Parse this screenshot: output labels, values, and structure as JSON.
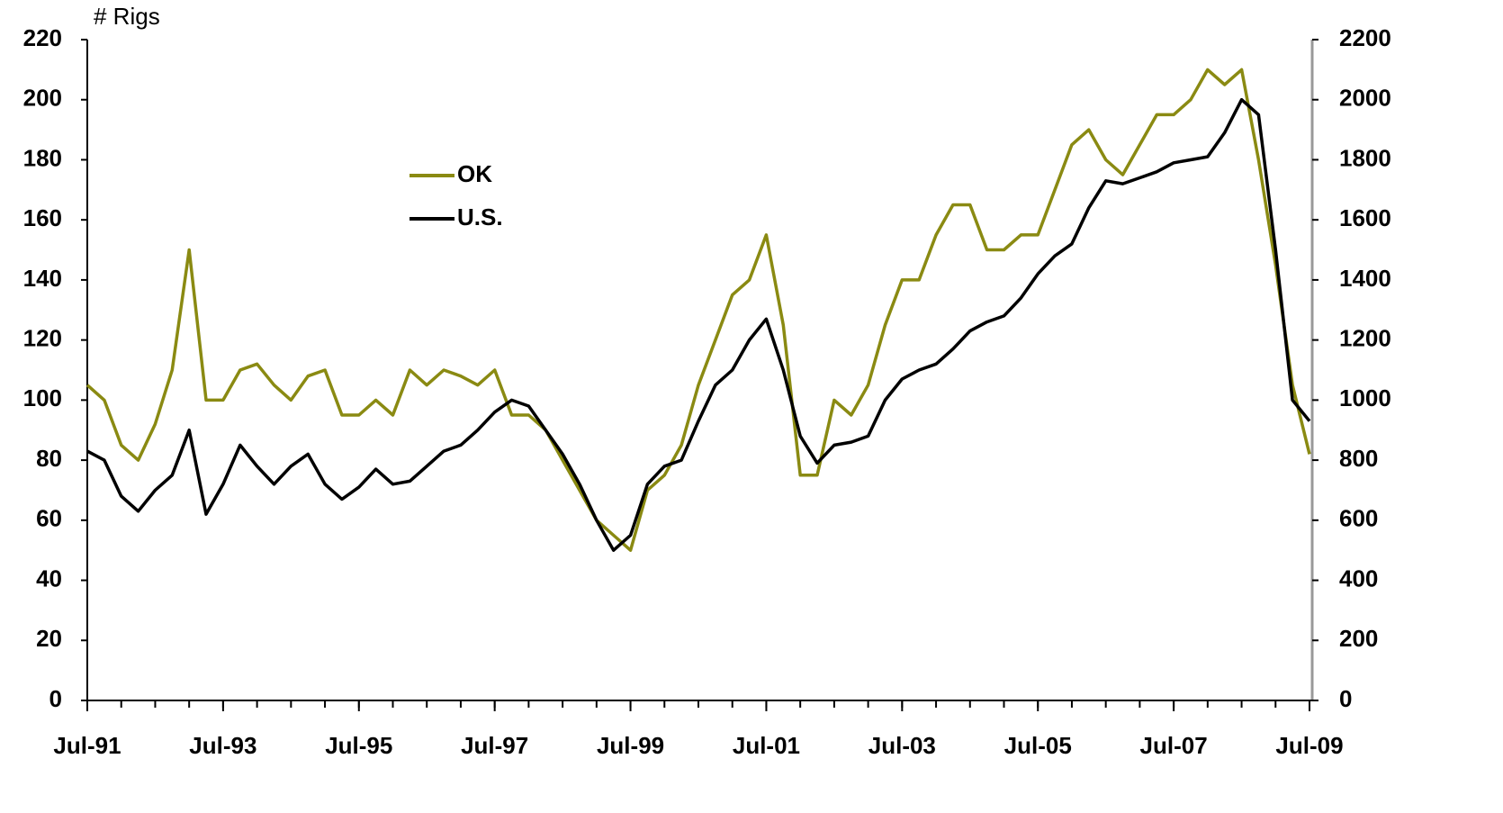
{
  "chart_data": {
    "type": "line",
    "y_label": "# Rigs",
    "x": [
      "Jul-91",
      "Oct-91",
      "Jan-92",
      "Apr-92",
      "Jul-92",
      "Oct-92",
      "Jan-93",
      "Apr-93",
      "Jul-93",
      "Oct-93",
      "Jan-94",
      "Apr-94",
      "Jul-94",
      "Oct-94",
      "Jan-95",
      "Apr-95",
      "Jul-95",
      "Oct-95",
      "Jan-96",
      "Apr-96",
      "Jul-96",
      "Oct-96",
      "Jan-97",
      "Apr-97",
      "Jul-97",
      "Oct-97",
      "Jan-98",
      "Apr-98",
      "Jul-98",
      "Oct-98",
      "Jan-99",
      "Apr-99",
      "Jul-99",
      "Oct-99",
      "Jan-00",
      "Apr-00",
      "Jul-00",
      "Oct-00",
      "Jan-01",
      "Apr-01",
      "Jul-01",
      "Oct-01",
      "Jan-02",
      "Apr-02",
      "Jul-02",
      "Oct-02",
      "Jan-03",
      "Apr-03",
      "Jul-03",
      "Oct-03",
      "Jan-04",
      "Apr-04",
      "Jul-04",
      "Oct-04",
      "Jan-05",
      "Apr-05",
      "Jul-05",
      "Oct-05",
      "Jan-06",
      "Apr-06",
      "Jul-06",
      "Oct-06",
      "Jan-07",
      "Apr-07",
      "Jul-07",
      "Oct-07",
      "Jan-08",
      "Apr-08",
      "Jul-08",
      "Oct-08",
      "Jan-09",
      "Apr-09",
      "Jul-09"
    ],
    "xticks": [
      "Jul-91",
      "Jul-93",
      "Jul-95",
      "Jul-97",
      "Jul-99",
      "Jul-01",
      "Jul-03",
      "Jul-05",
      "Jul-07",
      "Jul-09"
    ],
    "series": [
      {
        "name": "OK",
        "color": "#8a8a12",
        "axis": "y",
        "values": [
          105,
          100,
          85,
          80,
          92,
          110,
          150,
          100,
          100,
          110,
          112,
          105,
          100,
          108,
          110,
          95,
          95,
          100,
          95,
          110,
          105,
          110,
          108,
          105,
          110,
          95,
          95,
          90,
          80,
          70,
          60,
          55,
          50,
          70,
          75,
          85,
          105,
          120,
          135,
          140,
          155,
          125,
          75,
          75,
          100,
          95,
          105,
          125,
          140,
          140,
          155,
          165,
          165,
          150,
          150,
          155,
          155,
          170,
          185,
          190,
          180,
          175,
          185,
          195,
          195,
          200,
          210,
          205,
          210,
          180,
          145,
          105,
          82
        ]
      },
      {
        "name": "U.S.",
        "color": "#000000",
        "axis": "y2",
        "values": [
          830,
          800,
          680,
          630,
          700,
          750,
          900,
          620,
          720,
          850,
          780,
          720,
          780,
          820,
          720,
          670,
          710,
          770,
          720,
          730,
          780,
          830,
          850,
          900,
          960,
          1000,
          980,
          900,
          820,
          720,
          600,
          500,
          550,
          720,
          780,
          800,
          930,
          1050,
          1100,
          1200,
          1270,
          1100,
          880,
          790,
          850,
          860,
          880,
          1000,
          1070,
          1100,
          1120,
          1170,
          1230,
          1260,
          1280,
          1340,
          1420,
          1480,
          1520,
          1640,
          1730,
          1720,
          1740,
          1760,
          1790,
          1800,
          1810,
          1890,
          2000,
          1950,
          1500,
          1000,
          930
        ]
      }
    ],
    "ylim": [
      0,
      220
    ],
    "yticks": [
      0,
      20,
      40,
      60,
      80,
      100,
      120,
      140,
      160,
      180,
      200,
      220
    ],
    "y2lim": [
      0,
      2200
    ],
    "y2ticks": [
      0,
      200,
      400,
      600,
      800,
      1000,
      1200,
      1400,
      1600,
      1800,
      2000,
      2200
    ]
  }
}
